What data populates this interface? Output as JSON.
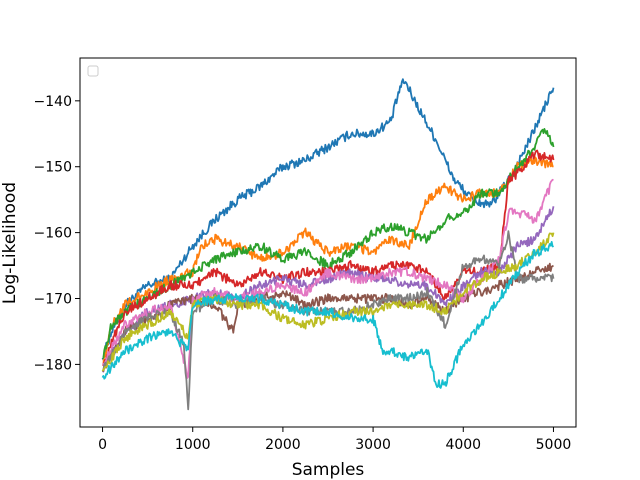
{
  "chart_data": {
    "type": "line",
    "title": "",
    "xlabel": "Samples",
    "ylabel": "Log-Likelihood",
    "xlim": [
      -250,
      5250
    ],
    "ylim": [
      -189.5,
      -133.5
    ],
    "xticks": [
      0,
      1000,
      2000,
      3000,
      4000,
      5000
    ],
    "xtick_labels": [
      "0",
      "1000",
      "2000",
      "3000",
      "4000",
      "5000"
    ],
    "yticks": [
      -180,
      -170,
      -160,
      -150,
      -140
    ],
    "ytick_labels": [
      "−180",
      "−170",
      "−160",
      "−150",
      "−140"
    ],
    "grid": false,
    "legend": {
      "placement": "top-left",
      "entries": []
    },
    "series": [
      {
        "color": "#1f77b4",
        "x": [
          0,
          100,
          250,
          500,
          750,
          1000,
          1250,
          1500,
          1750,
          2000,
          2250,
          2500,
          2750,
          3000,
          3200,
          3300,
          3350,
          3500,
          3700,
          3900,
          4100,
          4300,
          4500,
          4700,
          4900,
          5000
        ],
        "y": [
          -179,
          -175,
          -171,
          -168,
          -167,
          -162,
          -158,
          -155,
          -153,
          -150,
          -149,
          -147,
          -145,
          -145,
          -143,
          -138,
          -137,
          -141,
          -146,
          -152,
          -155,
          -156,
          -152,
          -147,
          -141,
          -138
        ]
      },
      {
        "color": "#ff7f0e",
        "x": [
          0,
          100,
          250,
          500,
          750,
          1000,
          1100,
          1250,
          1500,
          1750,
          2000,
          2250,
          2500,
          2750,
          3000,
          3200,
          3400,
          3600,
          3800,
          4000,
          4200,
          4400,
          4600,
          4800,
          5000
        ],
        "y": [
          -180,
          -174,
          -171,
          -169,
          -167,
          -166,
          -162,
          -161,
          -162,
          -164,
          -163,
          -160,
          -163,
          -162,
          -163,
          -161,
          -162,
          -155,
          -153,
          -155,
          -154,
          -154,
          -150,
          -149,
          -150
        ]
      },
      {
        "color": "#2ca02c",
        "x": [
          0,
          100,
          250,
          500,
          750,
          1000,
          1250,
          1500,
          1750,
          2000,
          2250,
          2500,
          2750,
          3000,
          3200,
          3400,
          3600,
          3800,
          4000,
          4200,
          4400,
          4600,
          4800,
          4900,
          5000
        ],
        "y": [
          -179,
          -174,
          -172,
          -170,
          -168,
          -166,
          -164,
          -163,
          -162,
          -164,
          -163,
          -165,
          -163,
          -160,
          -159,
          -160,
          -161,
          -158,
          -157,
          -154,
          -154,
          -150,
          -147,
          -144,
          -147
        ]
      },
      {
        "color": "#d62728",
        "x": [
          0,
          250,
          500,
          750,
          1000,
          1250,
          1500,
          1750,
          2000,
          2250,
          2500,
          2750,
          3000,
          3200,
          3400,
          3600,
          3800,
          4000,
          4200,
          4400,
          4500,
          4600,
          4800,
          5000
        ],
        "y": [
          -180,
          -172,
          -170,
          -168,
          -168,
          -166,
          -168,
          -166,
          -167,
          -166,
          -166,
          -165,
          -166,
          -165,
          -165,
          -166,
          -170,
          -166,
          -166,
          -165,
          -152,
          -151,
          -148,
          -149
        ]
      },
      {
        "color": "#9467bd",
        "x": [
          0,
          250,
          500,
          750,
          1000,
          1250,
          1500,
          1750,
          2000,
          2250,
          2500,
          2750,
          3000,
          3200,
          3400,
          3600,
          3800,
          4000,
          4200,
          4400,
          4600,
          4800,
          5000
        ],
        "y": [
          -181,
          -175,
          -172,
          -171,
          -170,
          -169,
          -170,
          -168,
          -167,
          -168,
          -167,
          -166,
          -167,
          -167,
          -168,
          -168,
          -171,
          -168,
          -166,
          -166,
          -162,
          -161,
          -156
        ]
      },
      {
        "color": "#8c564b",
        "x": [
          0,
          250,
          500,
          750,
          1000,
          1250,
          1450,
          1500,
          1750,
          2000,
          2250,
          2500,
          2750,
          3000,
          3200,
          3400,
          3600,
          3800,
          4000,
          4200,
          4400,
          4600,
          4800,
          5000
        ],
        "y": [
          -181,
          -175,
          -173,
          -171,
          -170,
          -171,
          -175,
          -171,
          -170,
          -169,
          -171,
          -170,
          -170,
          -170,
          -170,
          -171,
          -170,
          -172,
          -170,
          -169,
          -168,
          -167,
          -166,
          -165
        ]
      },
      {
        "color": "#e377c2",
        "x": [
          0,
          250,
          500,
          750,
          950,
          1000,
          1250,
          1500,
          1750,
          2000,
          2250,
          2500,
          2750,
          3000,
          3200,
          3400,
          3600,
          3800,
          4000,
          4200,
          4400,
          4500,
          4600,
          4800,
          5000
        ],
        "y": [
          -180,
          -174,
          -172,
          -171,
          -182,
          -170,
          -169,
          -170,
          -169,
          -168,
          -169,
          -166,
          -167,
          -167,
          -166,
          -166,
          -167,
          -168,
          -170,
          -167,
          -164,
          -157,
          -157,
          -158,
          -152
        ]
      },
      {
        "color": "#7f7f7f",
        "x": [
          0,
          250,
          500,
          750,
          900,
          950,
          1000,
          1250,
          1500,
          1750,
          2000,
          2250,
          2500,
          2750,
          3000,
          3200,
          3400,
          3600,
          3800,
          4000,
          4200,
          4400,
          4500,
          4600,
          4800,
          5000
        ],
        "y": [
          -181,
          -175,
          -173,
          -172,
          -177,
          -187,
          -172,
          -170,
          -171,
          -170,
          -171,
          -172,
          -172,
          -172,
          -171,
          -170,
          -170,
          -169,
          -174,
          -165,
          -164,
          -165,
          -160,
          -167,
          -167,
          -167
        ]
      },
      {
        "color": "#bcbd22",
        "x": [
          0,
          250,
          500,
          750,
          950,
          1000,
          1250,
          1500,
          1750,
          2000,
          2250,
          2500,
          2750,
          3000,
          3200,
          3400,
          3600,
          3800,
          4000,
          4200,
          4400,
          4600,
          4800,
          5000
        ],
        "y": [
          -181,
          -176,
          -174,
          -172,
          -176,
          -171,
          -170,
          -171,
          -171,
          -173,
          -174,
          -173,
          -172,
          -172,
          -171,
          -171,
          -171,
          -172,
          -169,
          -167,
          -166,
          -165,
          -163,
          -160
        ]
      },
      {
        "color": "#17becf",
        "x": [
          0,
          250,
          500,
          750,
          950,
          1000,
          1250,
          1500,
          1750,
          2000,
          2250,
          2500,
          2750,
          3000,
          3100,
          3200,
          3400,
          3600,
          3700,
          3800,
          3900,
          4000,
          4200,
          4400,
          4600,
          4800,
          5000
        ],
        "y": [
          -182,
          -178,
          -176,
          -175,
          -178,
          -171,
          -170,
          -170,
          -170,
          -171,
          -172,
          -172,
          -173,
          -173,
          -178,
          -178,
          -179,
          -178,
          -183,
          -183,
          -180,
          -177,
          -174,
          -170,
          -166,
          -163,
          -162
        ]
      }
    ]
  }
}
